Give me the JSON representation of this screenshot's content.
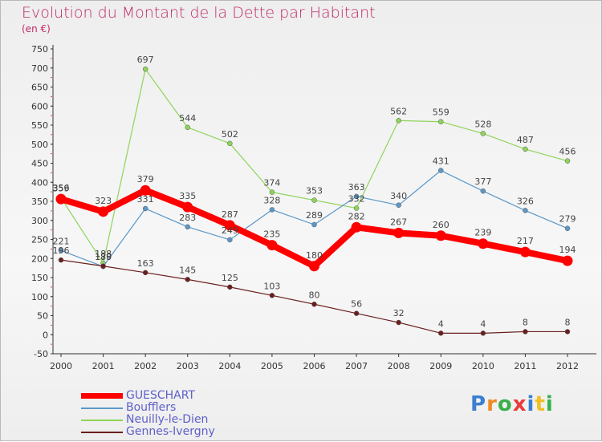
{
  "chart_data": {
    "type": "line",
    "title": "Evolution du Montant de la Dette par Habitant",
    "subtitle": "(en €)",
    "x": [
      "2000",
      "2001",
      "2002",
      "2003",
      "2004",
      "2005",
      "2006",
      "2007",
      "2008",
      "2009",
      "2010",
      "2011",
      "2012"
    ],
    "ylim": [
      -50,
      750
    ],
    "yticks": [
      -50,
      0,
      50,
      100,
      150,
      200,
      250,
      300,
      350,
      400,
      450,
      500,
      550,
      600,
      650,
      700,
      750
    ],
    "grid": false,
    "legend_position": "bottom-left",
    "series": [
      {
        "name": "Neuilly-le-Dien",
        "color": "#8fd45a",
        "values": [
          359,
          188,
          697,
          544,
          502,
          374,
          353,
          332,
          562,
          559,
          528,
          487,
          456
        ]
      },
      {
        "name": "Boufflers",
        "color": "#5b98c8",
        "values": [
          221,
          179,
          331,
          283,
          249,
          328,
          289,
          363,
          340,
          431,
          377,
          326,
          279
        ]
      },
      {
        "name": "Gennes-Ivergny",
        "color": "#6b1e1e",
        "values": [
          196,
          180,
          163,
          145,
          125,
          103,
          80,
          56,
          32,
          4,
          4,
          8,
          8
        ]
      },
      {
        "name": "GUESCHART",
        "color": "#ff0000",
        "values": [
          356,
          323,
          379,
          335,
          287,
          235,
          180,
          282,
          267,
          260,
          239,
          217,
          194
        ]
      }
    ],
    "legend_order": [
      "GUESCHART",
      "Boufflers",
      "Neuilly-le-Dien",
      "Gennes-Ivergny"
    ]
  },
  "legend": [
    {
      "label": "GUESCHART",
      "color": "#ff0000"
    },
    {
      "label": "Boufflers",
      "color": "#5b98c8"
    },
    {
      "label": "Neuilly-le-Dien",
      "color": "#8fd45a"
    },
    {
      "label": "Gennes-Ivergny",
      "color": "#6b1e1e"
    }
  ],
  "logo": {
    "text": "Proxiti"
  }
}
